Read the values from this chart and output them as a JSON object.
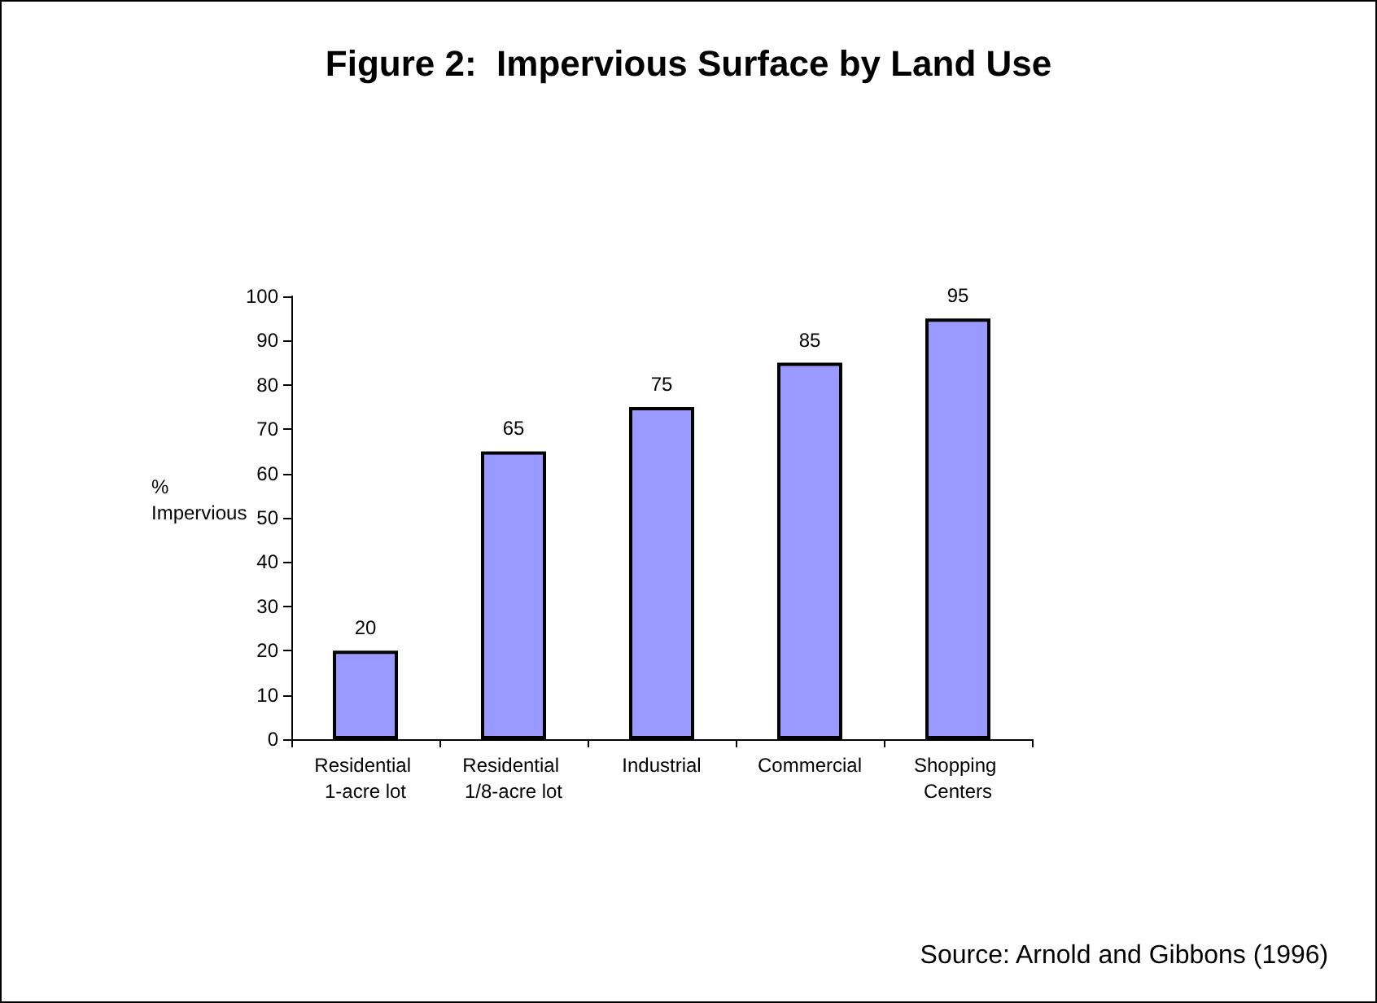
{
  "chart_data": {
    "type": "bar",
    "title": "Figure 2:  Impervious Surface by Land Use",
    "ylabel": "% Impervious",
    "categories": [
      "Residential 1-acre lot",
      "Residential 1/8-acre lot",
      "Industrial",
      "Commercial",
      "Shopping Centers"
    ],
    "values": [
      20,
      65,
      75,
      85,
      95
    ],
    "color": "#9999ff",
    "ylim": [
      0,
      100
    ],
    "yticks": [
      0,
      10,
      20,
      30,
      40,
      50,
      60,
      70,
      80,
      90,
      100
    ],
    "data_labels": true,
    "grid": false,
    "annotations": [
      "Source: Arnold and Gibbons (1996)"
    ]
  }
}
